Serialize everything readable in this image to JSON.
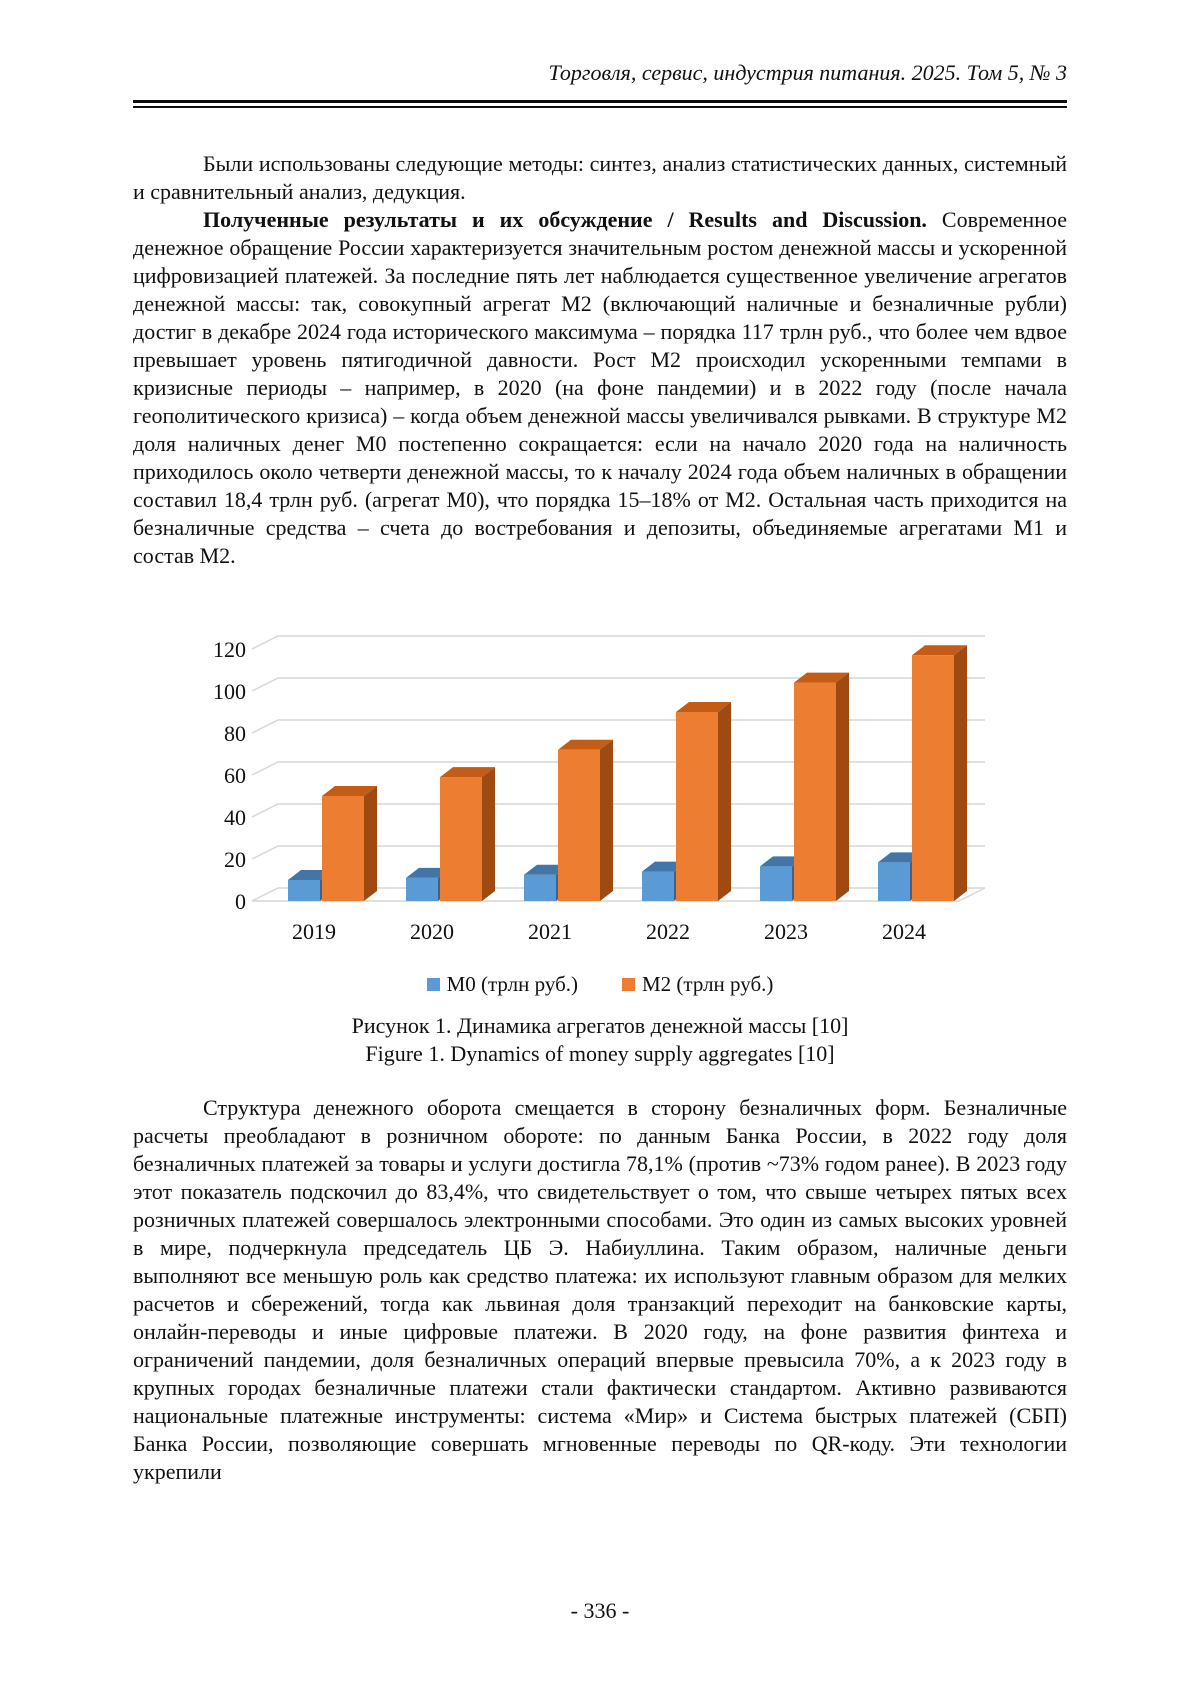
{
  "page": {
    "header": "Торговля, сервис, индустрия питания. 2025. Том 5, № 3",
    "footer": "- 336 -"
  },
  "paragraphs": {
    "p1": "Были использованы следующие методы: синтез, анализ статистических данных, системный и сравнительный анализ, дедукция.",
    "p2_lead": "Полученные результаты и их обсуждение / Results and Discussion.",
    "p2_rest": " Современное денежное обращение России характеризуется значительным ростом денежной массы и ускоренной цифровизацией платежей. За последние пять лет наблюдается существенное увеличение агрегатов денежной массы: так, совокупный агрегат М2 (включающий наличные и безналичные рубли) достиг в декабре 2024 года исторического максимума – порядка 117 трлн руб., что более чем вдвое превышает уровень пятигодичной давности. Рост М2 происходил ускоренными темпами в кризисные периоды – например, в 2020 (на фоне пандемии) и в 2022 году (после начала геополитического кризиса) – когда объем денежной массы увеличивался рывками. В структуре М2 доля наличных денег М0 постепенно сокращается: если на начало 2020 года на наличность приходилось около четверти денежной массы, то к началу 2024 года объем наличных в обращении составил 18,4 трлн руб. (агрегат М0), что порядка 15–18% от М2. Остальная часть приходится на безналичные средства – счета до востребования и депозиты, объединяемые агрегатами М1 и состав М2.",
    "p3": "Структура денежного оборота смещается в сторону безналичных форм. Безналичные расчеты преобладают в розничном обороте: по данным Банка России, в 2022 году доля безналичных платежей за товары и услуги достигла 78,1% (против ~73% годом ранее). В 2023 году этот показатель подскочил до 83,4%, что свидетельствует о том, что свыше четырех пятых всех розничных платежей совершалось электронными способами. Это один из самых высоких уровней в мире, подчеркнула председатель ЦБ Э. Набиуллина. Таким образом, наличные деньги выполняют все меньшую роль как средство платежа: их используют главным образом для мелких расчетов и сбережений, тогда как львиная доля транзакций переходит на банковские карты, онлайн-переводы и иные цифровые платежи. В 2020 году, на фоне развития финтеха и ограничений пандемии, доля безналичных операций впервые превысила 70%, а к 2023 году в крупных городах безналичные платежи стали фактически стандартом. Активно развиваются национальные платежные инструменты: система «Мир» и Система быстрых платежей (СБП) Банка России, позволяющие совершать мгновенные переводы по QR-коду. Эти технологии укрепили"
  },
  "figure": {
    "caption_ru": "Рисунок 1. Динамика агрегатов денежной массы [10]",
    "caption_en": "Figure 1. Dynamics of money supply aggregates [10]"
  },
  "chart_data": {
    "type": "bar",
    "style": "3d-clustered",
    "title": "",
    "xlabel": "",
    "ylabel": "",
    "categories": [
      "2019",
      "2020",
      "2021",
      "2022",
      "2023",
      "2024"
    ],
    "series": [
      {
        "name": "М0 (трлн руб.)",
        "color": "#5B9BD5",
        "color_top": "#4475A7",
        "color_side": "#3A6391",
        "values": [
          10,
          11,
          12.5,
          14,
          16.5,
          18.4
        ]
      },
      {
        "name": "М2 (трлн руб.)",
        "color": "#ED7D31",
        "color_top": "#C25C16",
        "color_side": "#9E4A11",
        "values": [
          50,
          59,
          72,
          90,
          104,
          117
        ]
      }
    ],
    "ylim": [
      0,
      120
    ],
    "ytick_step": 20,
    "grid": true,
    "gridcolor": "#D6D6D6",
    "legend_position": "bottom"
  }
}
